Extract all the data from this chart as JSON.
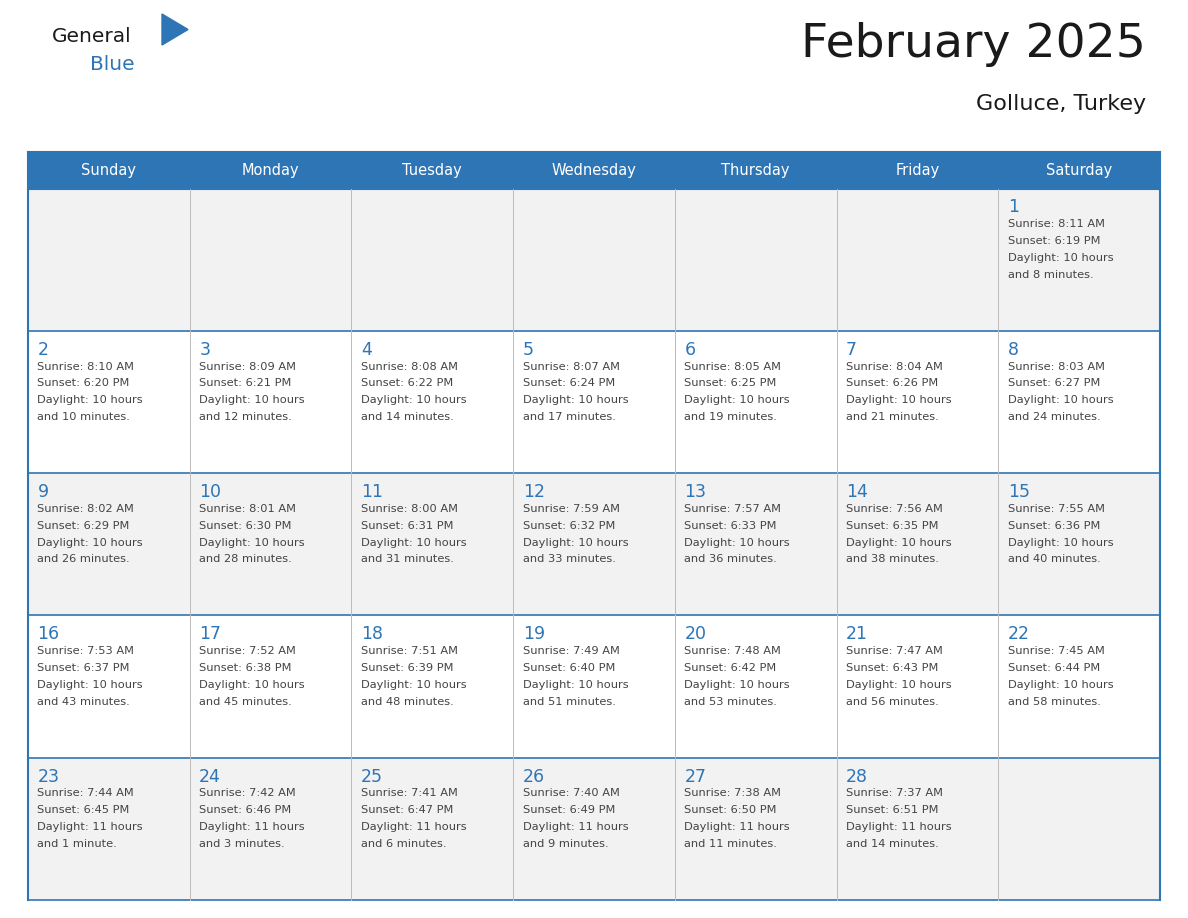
{
  "title": "February 2025",
  "subtitle": "Golluce, Turkey",
  "header_color": "#2E75B6",
  "header_text_color": "#FFFFFF",
  "days_of_week": [
    "Sunday",
    "Monday",
    "Tuesday",
    "Wednesday",
    "Thursday",
    "Friday",
    "Saturday"
  ],
  "bg_color": "#FFFFFF",
  "row_bg_odd": "#F2F2F2",
  "row_bg_even": "#FFFFFF",
  "line_color": "#2E75B6",
  "day_number_color": "#2E75B6",
  "text_color": "#444444",
  "logo_general_color": "#1a1a1a",
  "logo_blue_color": "#2E75B6",
  "logo_triangle_color": "#2E75B6",
  "title_color": "#1a1a1a",
  "calendar": [
    [
      null,
      null,
      null,
      null,
      null,
      null,
      {
        "day": "1",
        "sunrise": "Sunrise: 8:11 AM",
        "sunset": "Sunset: 6:19 PM",
        "daylight": "Daylight: 10 hours",
        "daylight2": "and 8 minutes."
      }
    ],
    [
      {
        "day": "2",
        "sunrise": "Sunrise: 8:10 AM",
        "sunset": "Sunset: 6:20 PM",
        "daylight": "Daylight: 10 hours",
        "daylight2": "and 10 minutes."
      },
      {
        "day": "3",
        "sunrise": "Sunrise: 8:09 AM",
        "sunset": "Sunset: 6:21 PM",
        "daylight": "Daylight: 10 hours",
        "daylight2": "and 12 minutes."
      },
      {
        "day": "4",
        "sunrise": "Sunrise: 8:08 AM",
        "sunset": "Sunset: 6:22 PM",
        "daylight": "Daylight: 10 hours",
        "daylight2": "and 14 minutes."
      },
      {
        "day": "5",
        "sunrise": "Sunrise: 8:07 AM",
        "sunset": "Sunset: 6:24 PM",
        "daylight": "Daylight: 10 hours",
        "daylight2": "and 17 minutes."
      },
      {
        "day": "6",
        "sunrise": "Sunrise: 8:05 AM",
        "sunset": "Sunset: 6:25 PM",
        "daylight": "Daylight: 10 hours",
        "daylight2": "and 19 minutes."
      },
      {
        "day": "7",
        "sunrise": "Sunrise: 8:04 AM",
        "sunset": "Sunset: 6:26 PM",
        "daylight": "Daylight: 10 hours",
        "daylight2": "and 21 minutes."
      },
      {
        "day": "8",
        "sunrise": "Sunrise: 8:03 AM",
        "sunset": "Sunset: 6:27 PM",
        "daylight": "Daylight: 10 hours",
        "daylight2": "and 24 minutes."
      }
    ],
    [
      {
        "day": "9",
        "sunrise": "Sunrise: 8:02 AM",
        "sunset": "Sunset: 6:29 PM",
        "daylight": "Daylight: 10 hours",
        "daylight2": "and 26 minutes."
      },
      {
        "day": "10",
        "sunrise": "Sunrise: 8:01 AM",
        "sunset": "Sunset: 6:30 PM",
        "daylight": "Daylight: 10 hours",
        "daylight2": "and 28 minutes."
      },
      {
        "day": "11",
        "sunrise": "Sunrise: 8:00 AM",
        "sunset": "Sunset: 6:31 PM",
        "daylight": "Daylight: 10 hours",
        "daylight2": "and 31 minutes."
      },
      {
        "day": "12",
        "sunrise": "Sunrise: 7:59 AM",
        "sunset": "Sunset: 6:32 PM",
        "daylight": "Daylight: 10 hours",
        "daylight2": "and 33 minutes."
      },
      {
        "day": "13",
        "sunrise": "Sunrise: 7:57 AM",
        "sunset": "Sunset: 6:33 PM",
        "daylight": "Daylight: 10 hours",
        "daylight2": "and 36 minutes."
      },
      {
        "day": "14",
        "sunrise": "Sunrise: 7:56 AM",
        "sunset": "Sunset: 6:35 PM",
        "daylight": "Daylight: 10 hours",
        "daylight2": "and 38 minutes."
      },
      {
        "day": "15",
        "sunrise": "Sunrise: 7:55 AM",
        "sunset": "Sunset: 6:36 PM",
        "daylight": "Daylight: 10 hours",
        "daylight2": "and 40 minutes."
      }
    ],
    [
      {
        "day": "16",
        "sunrise": "Sunrise: 7:53 AM",
        "sunset": "Sunset: 6:37 PM",
        "daylight": "Daylight: 10 hours",
        "daylight2": "and 43 minutes."
      },
      {
        "day": "17",
        "sunrise": "Sunrise: 7:52 AM",
        "sunset": "Sunset: 6:38 PM",
        "daylight": "Daylight: 10 hours",
        "daylight2": "and 45 minutes."
      },
      {
        "day": "18",
        "sunrise": "Sunrise: 7:51 AM",
        "sunset": "Sunset: 6:39 PM",
        "daylight": "Daylight: 10 hours",
        "daylight2": "and 48 minutes."
      },
      {
        "day": "19",
        "sunrise": "Sunrise: 7:49 AM",
        "sunset": "Sunset: 6:40 PM",
        "daylight": "Daylight: 10 hours",
        "daylight2": "and 51 minutes."
      },
      {
        "day": "20",
        "sunrise": "Sunrise: 7:48 AM",
        "sunset": "Sunset: 6:42 PM",
        "daylight": "Daylight: 10 hours",
        "daylight2": "and 53 minutes."
      },
      {
        "day": "21",
        "sunrise": "Sunrise: 7:47 AM",
        "sunset": "Sunset: 6:43 PM",
        "daylight": "Daylight: 10 hours",
        "daylight2": "and 56 minutes."
      },
      {
        "day": "22",
        "sunrise": "Sunrise: 7:45 AM",
        "sunset": "Sunset: 6:44 PM",
        "daylight": "Daylight: 10 hours",
        "daylight2": "and 58 minutes."
      }
    ],
    [
      {
        "day": "23",
        "sunrise": "Sunrise: 7:44 AM",
        "sunset": "Sunset: 6:45 PM",
        "daylight": "Daylight: 11 hours",
        "daylight2": "and 1 minute."
      },
      {
        "day": "24",
        "sunrise": "Sunrise: 7:42 AM",
        "sunset": "Sunset: 6:46 PM",
        "daylight": "Daylight: 11 hours",
        "daylight2": "and 3 minutes."
      },
      {
        "day": "25",
        "sunrise": "Sunrise: 7:41 AM",
        "sunset": "Sunset: 6:47 PM",
        "daylight": "Daylight: 11 hours",
        "daylight2": "and 6 minutes."
      },
      {
        "day": "26",
        "sunrise": "Sunrise: 7:40 AM",
        "sunset": "Sunset: 6:49 PM",
        "daylight": "Daylight: 11 hours",
        "daylight2": "and 9 minutes."
      },
      {
        "day": "27",
        "sunrise": "Sunrise: 7:38 AM",
        "sunset": "Sunset: 6:50 PM",
        "daylight": "Daylight: 11 hours",
        "daylight2": "and 11 minutes."
      },
      {
        "day": "28",
        "sunrise": "Sunrise: 7:37 AM",
        "sunset": "Sunset: 6:51 PM",
        "daylight": "Daylight: 11 hours",
        "daylight2": "and 14 minutes."
      },
      null
    ]
  ]
}
